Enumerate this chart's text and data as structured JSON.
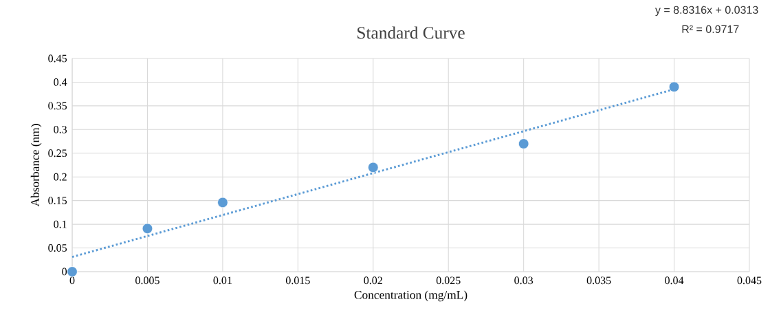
{
  "chart_data": {
    "type": "scatter",
    "title": "Standard Curve",
    "xlabel": "Concentration (mg/mL)",
    "ylabel": "Absorbance (nm)",
    "series": [
      {
        "color": "#5b9bd5",
        "x": [
          0,
          0.005,
          0.01,
          0.02,
          0.03,
          0.04
        ],
        "values": [
          0,
          0.091,
          0.146,
          0.22,
          0.27,
          0.39
        ]
      },
      {
        "type": "line",
        "color": "#5b9bd5",
        "x": [
          0,
          0.04
        ],
        "values": [
          0.031,
          0.385
        ],
        "marker": "none",
        "line_style": "dotted"
      }
    ],
    "xlim": [
      0,
      0.045
    ],
    "xticks": [
      0,
      0.005,
      0.01,
      0.015,
      0.02,
      0.025,
      0.03,
      0.035,
      0.04,
      0.045
    ],
    "ylim": [
      0,
      0.45
    ],
    "yticks": [
      0,
      0.05,
      0.1,
      0.15,
      0.2,
      0.25,
      0.3,
      0.35,
      0.4,
      0.45
    ],
    "grid": true,
    "marker": "circle",
    "annotations": [
      "y = 8.8316x + 0.0313",
      "R² = 0.9717"
    ]
  }
}
